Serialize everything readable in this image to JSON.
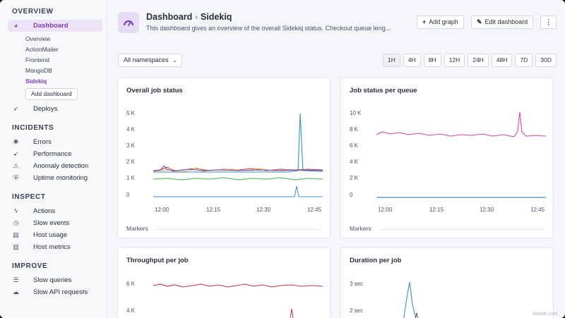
{
  "sidebar": {
    "overview": {
      "title": "OVERVIEW",
      "dashboard": "Dashboard",
      "subitems": [
        "Overview",
        "ActionMailer",
        "Frontend",
        "MongoDB",
        "Sidekiq"
      ],
      "add_dashboard": "Add dashboard",
      "deploys": "Deploys"
    },
    "incidents": {
      "title": "INCIDENTS",
      "items": [
        "Errors",
        "Performance",
        "Anomaly detection",
        "Uptime monitoring"
      ]
    },
    "inspect": {
      "title": "INSPECT",
      "items": [
        "Actions",
        "Slow events",
        "Host usage",
        "Host metrics"
      ]
    },
    "improve": {
      "title": "IMPROVE",
      "items": [
        "Slow queries",
        "Slow API requests"
      ]
    }
  },
  "header": {
    "crumb_root": "Dashboard",
    "crumb_sep": "›",
    "crumb_current": "Sidekiq",
    "description": "This dashboard gives an overview of the overall Sidekiq status. Checkout queue leng...",
    "add_graph": "Add graph",
    "edit_dashboard": "Edit dashboard",
    "more": "⋮"
  },
  "filters": {
    "namespace": "All namespaces",
    "ranges": [
      "1H",
      "4H",
      "8H",
      "12H",
      "24H",
      "48H",
      "7D",
      "30D"
    ]
  },
  "panels": {
    "overall": {
      "title": "Overall job status",
      "yticks": [
        "5 K",
        "4 K",
        "3 K",
        "2 K",
        "1 K",
        "0"
      ],
      "xticks": [
        "12:00",
        "12:15",
        "12:30",
        "12:45"
      ],
      "markers": "Markers"
    },
    "per_queue": {
      "title": "Job status per queue",
      "yticks": [
        "10 K",
        "8 K",
        "6 K",
        "4 K",
        "2 K",
        "0"
      ],
      "xticks": [
        "12:00",
        "12:15",
        "12:30",
        "12:45"
      ],
      "markers": "Markers"
    },
    "throughput": {
      "title": "Throughput per job",
      "yticks": [
        "6 K",
        "4 K"
      ]
    },
    "duration": {
      "title": "Duration per job",
      "yticks": [
        "3 sec",
        "2 sec"
      ]
    }
  },
  "colors": {
    "accent": "#7b3fb5",
    "blue": "#3a8fc4",
    "pink": "#c84a9c",
    "red": "#c4364a",
    "green": "#5fbf6a",
    "yellow": "#e0b431",
    "purple": "#6a4fc4"
  },
  "watermark": "wsxdn.com"
}
